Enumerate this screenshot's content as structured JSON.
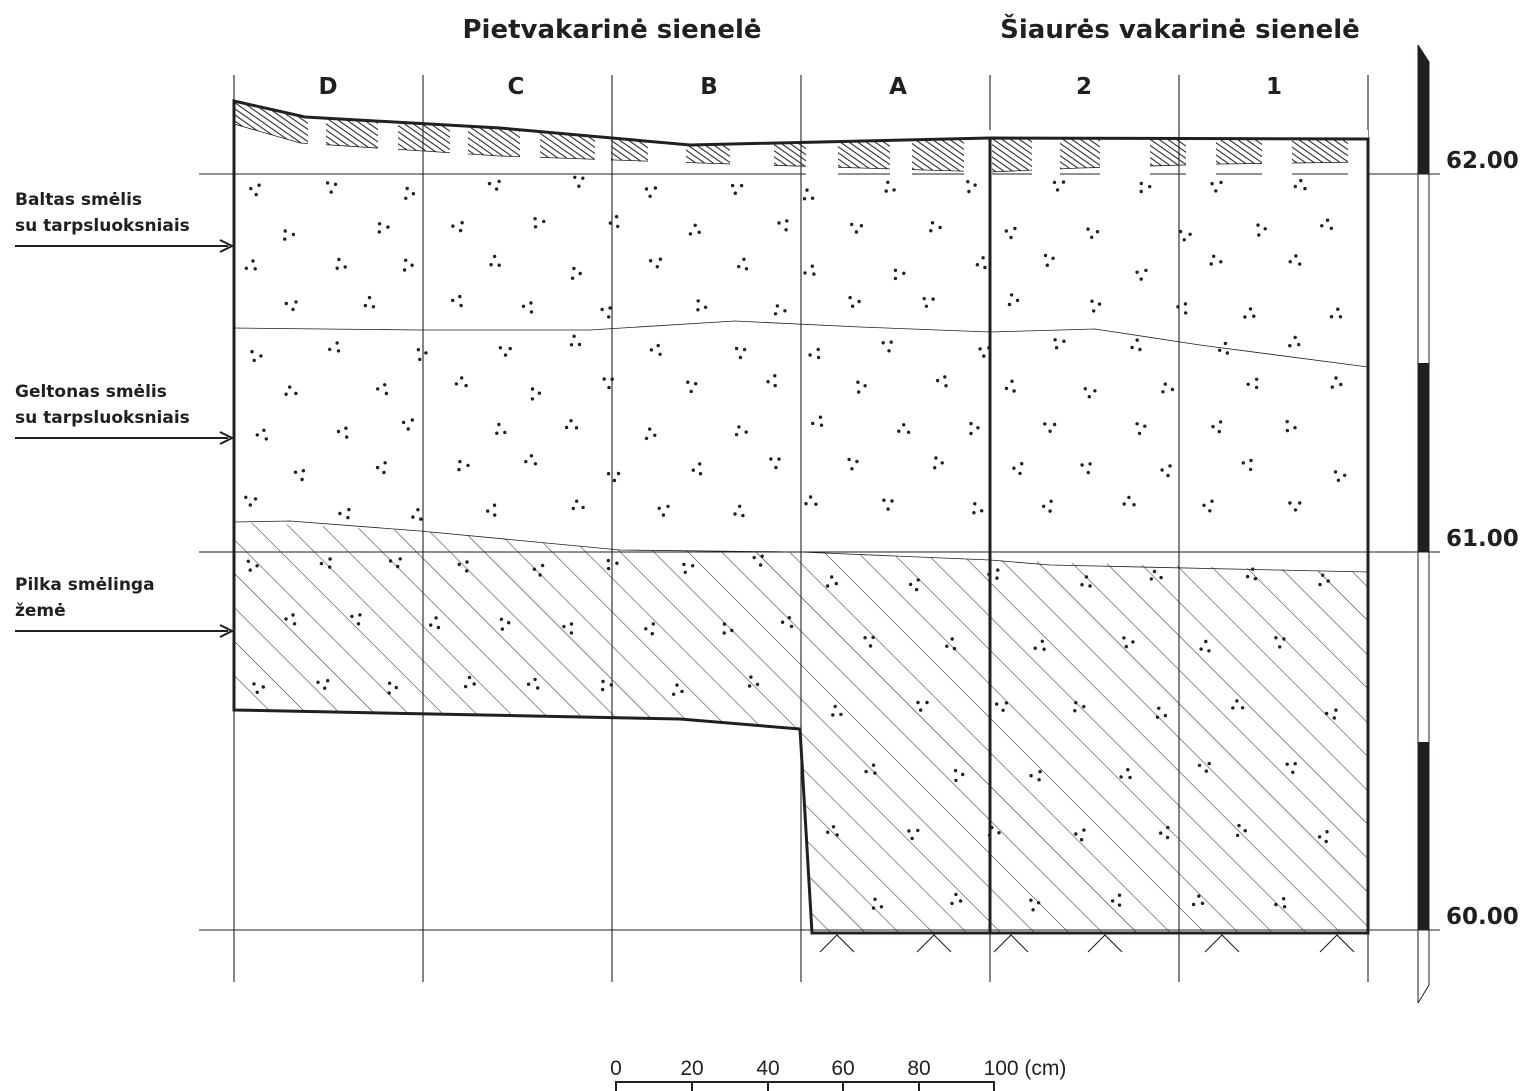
{
  "titles": {
    "left": "Pietvakarinė sienelė",
    "right": "Šiaurės vakarinė sienelė"
  },
  "columns": [
    "D",
    "C",
    "B",
    "A",
    "2",
    "1"
  ],
  "layers": [
    {
      "line1": "Baltas smėlis",
      "line2": "su tarpsluoksniais"
    },
    {
      "line1": "Geltonas smėlis",
      "line2": "su tarpsluoksniais"
    },
    {
      "line1": "Pilka smėlinga",
      "line2": "žemė"
    }
  ],
  "elevations": [
    "62.00",
    "61.00",
    "60.00"
  ],
  "scale_bar": {
    "ticks": [
      "0",
      "20",
      "40",
      "60",
      "80",
      "100 (cm)"
    ]
  }
}
